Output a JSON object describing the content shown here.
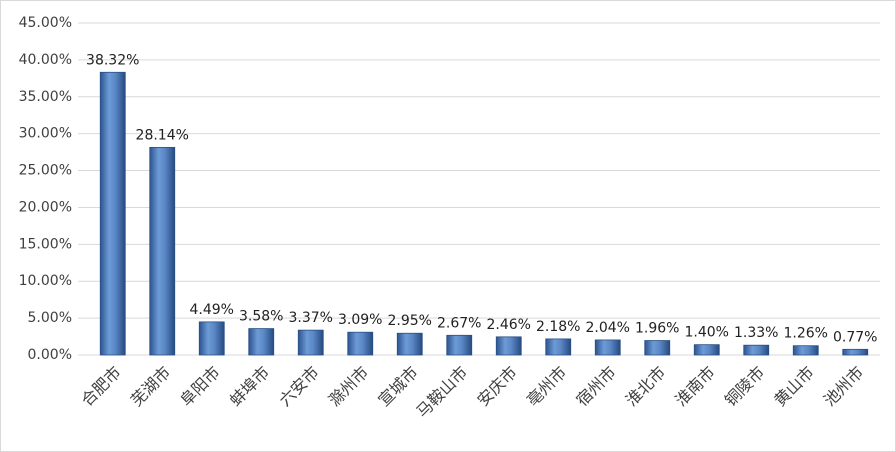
{
  "chart_data": {
    "type": "bar",
    "categories": [
      "合肥市",
      "芜湖市",
      "阜阳市",
      "蚌埠市",
      "六安市",
      "滁州市",
      "宣城市",
      "马鞍山市",
      "安庆市",
      "亳州市",
      "宿州市",
      "淮北市",
      "淮南市",
      "铜陵市",
      "黄山市",
      "池州市"
    ],
    "values": [
      38.32,
      28.14,
      4.49,
      3.58,
      3.37,
      3.09,
      2.95,
      2.67,
      2.46,
      2.18,
      2.04,
      1.96,
      1.4,
      1.33,
      1.26,
      0.77
    ],
    "value_labels": [
      "38.32%",
      "28.14%",
      "4.49%",
      "3.58%",
      "3.37%",
      "3.09%",
      "2.95%",
      "2.67%",
      "2.46%",
      "2.18%",
      "2.04%",
      "1.96%",
      "1.40%",
      "1.33%",
      "1.26%",
      "0.77%"
    ],
    "color": "#4f81bd",
    "ylim": [
      0,
      45
    ],
    "yticks": [
      {
        "value": 0,
        "label": "0.00%"
      },
      {
        "value": 5,
        "label": "5.00%"
      },
      {
        "value": 10,
        "label": "10.00%"
      },
      {
        "value": 15,
        "label": "15.00%"
      },
      {
        "value": 20,
        "label": "20.00%"
      },
      {
        "value": 25,
        "label": "25.00%"
      },
      {
        "value": 30,
        "label": "30.00%"
      },
      {
        "value": 35,
        "label": "35.00%"
      },
      {
        "value": 40,
        "label": "40.00%"
      },
      {
        "value": 45,
        "label": "45.00%"
      }
    ],
    "grid": true
  }
}
